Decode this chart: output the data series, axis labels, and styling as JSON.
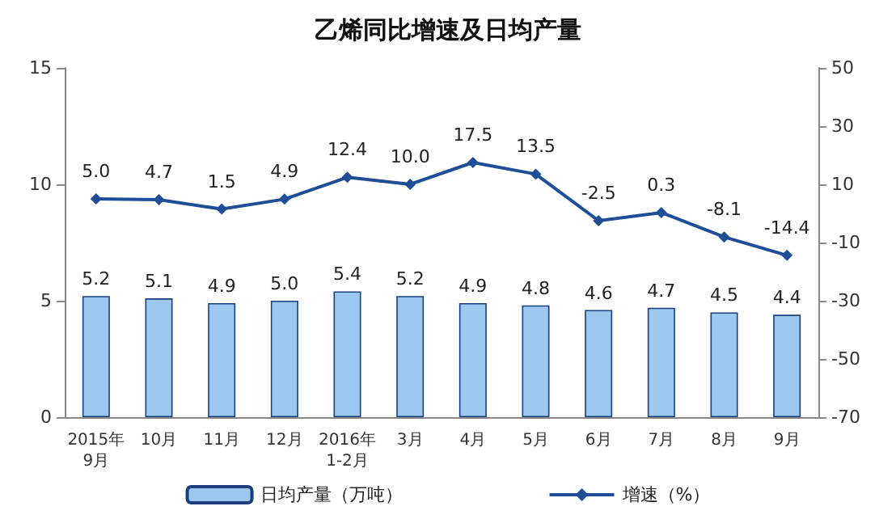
{
  "chart_data": {
    "type": "bar",
    "title": "乙烯同比增速及日均产量",
    "categories": [
      "2015年\n9月",
      "10月",
      "11月",
      "12月",
      "2016年\n1-2月",
      "3月",
      "4月",
      "5月",
      "6月",
      "7月",
      "8月",
      "9月"
    ],
    "series": [
      {
        "name": "日均产量（万吨）",
        "color": "#9cc8f0",
        "values": [
          5.2,
          5.1,
          4.9,
          5.0,
          5.4,
          5.2,
          4.9,
          4.8,
          4.6,
          4.7,
          4.5,
          4.4
        ],
        "value_labels": [
          "5.2",
          "5.1",
          "4.9",
          "5.0",
          "5.4",
          "5.2",
          "4.9",
          "4.8",
          "4.6",
          "4.7",
          "4.5",
          "4.4"
        ]
      },
      {
        "name": "增速（%）",
        "type": "line",
        "axis": "y2",
        "color": "#1f4e99",
        "values": [
          5.0,
          4.7,
          1.5,
          4.9,
          12.4,
          10.0,
          17.5,
          13.5,
          -2.5,
          0.3,
          -8.1,
          -14.4
        ],
        "value_labels": [
          "5.0",
          "4.7",
          "1.5",
          "4.9",
          "12.4",
          "10.0",
          "17.5",
          "13.5",
          "-2.5",
          "0.3",
          "-8.1",
          "-14.4"
        ]
      }
    ],
    "ylim": [
      0,
      15
    ],
    "yticks": [
      0,
      5,
      10,
      15
    ],
    "y2lim": [
      -70,
      50
    ],
    "y2ticks": [
      -70,
      -50,
      -30,
      -10,
      10,
      30,
      50
    ],
    "marker": "diamond",
    "legend": "bottom",
    "grid": false
  }
}
